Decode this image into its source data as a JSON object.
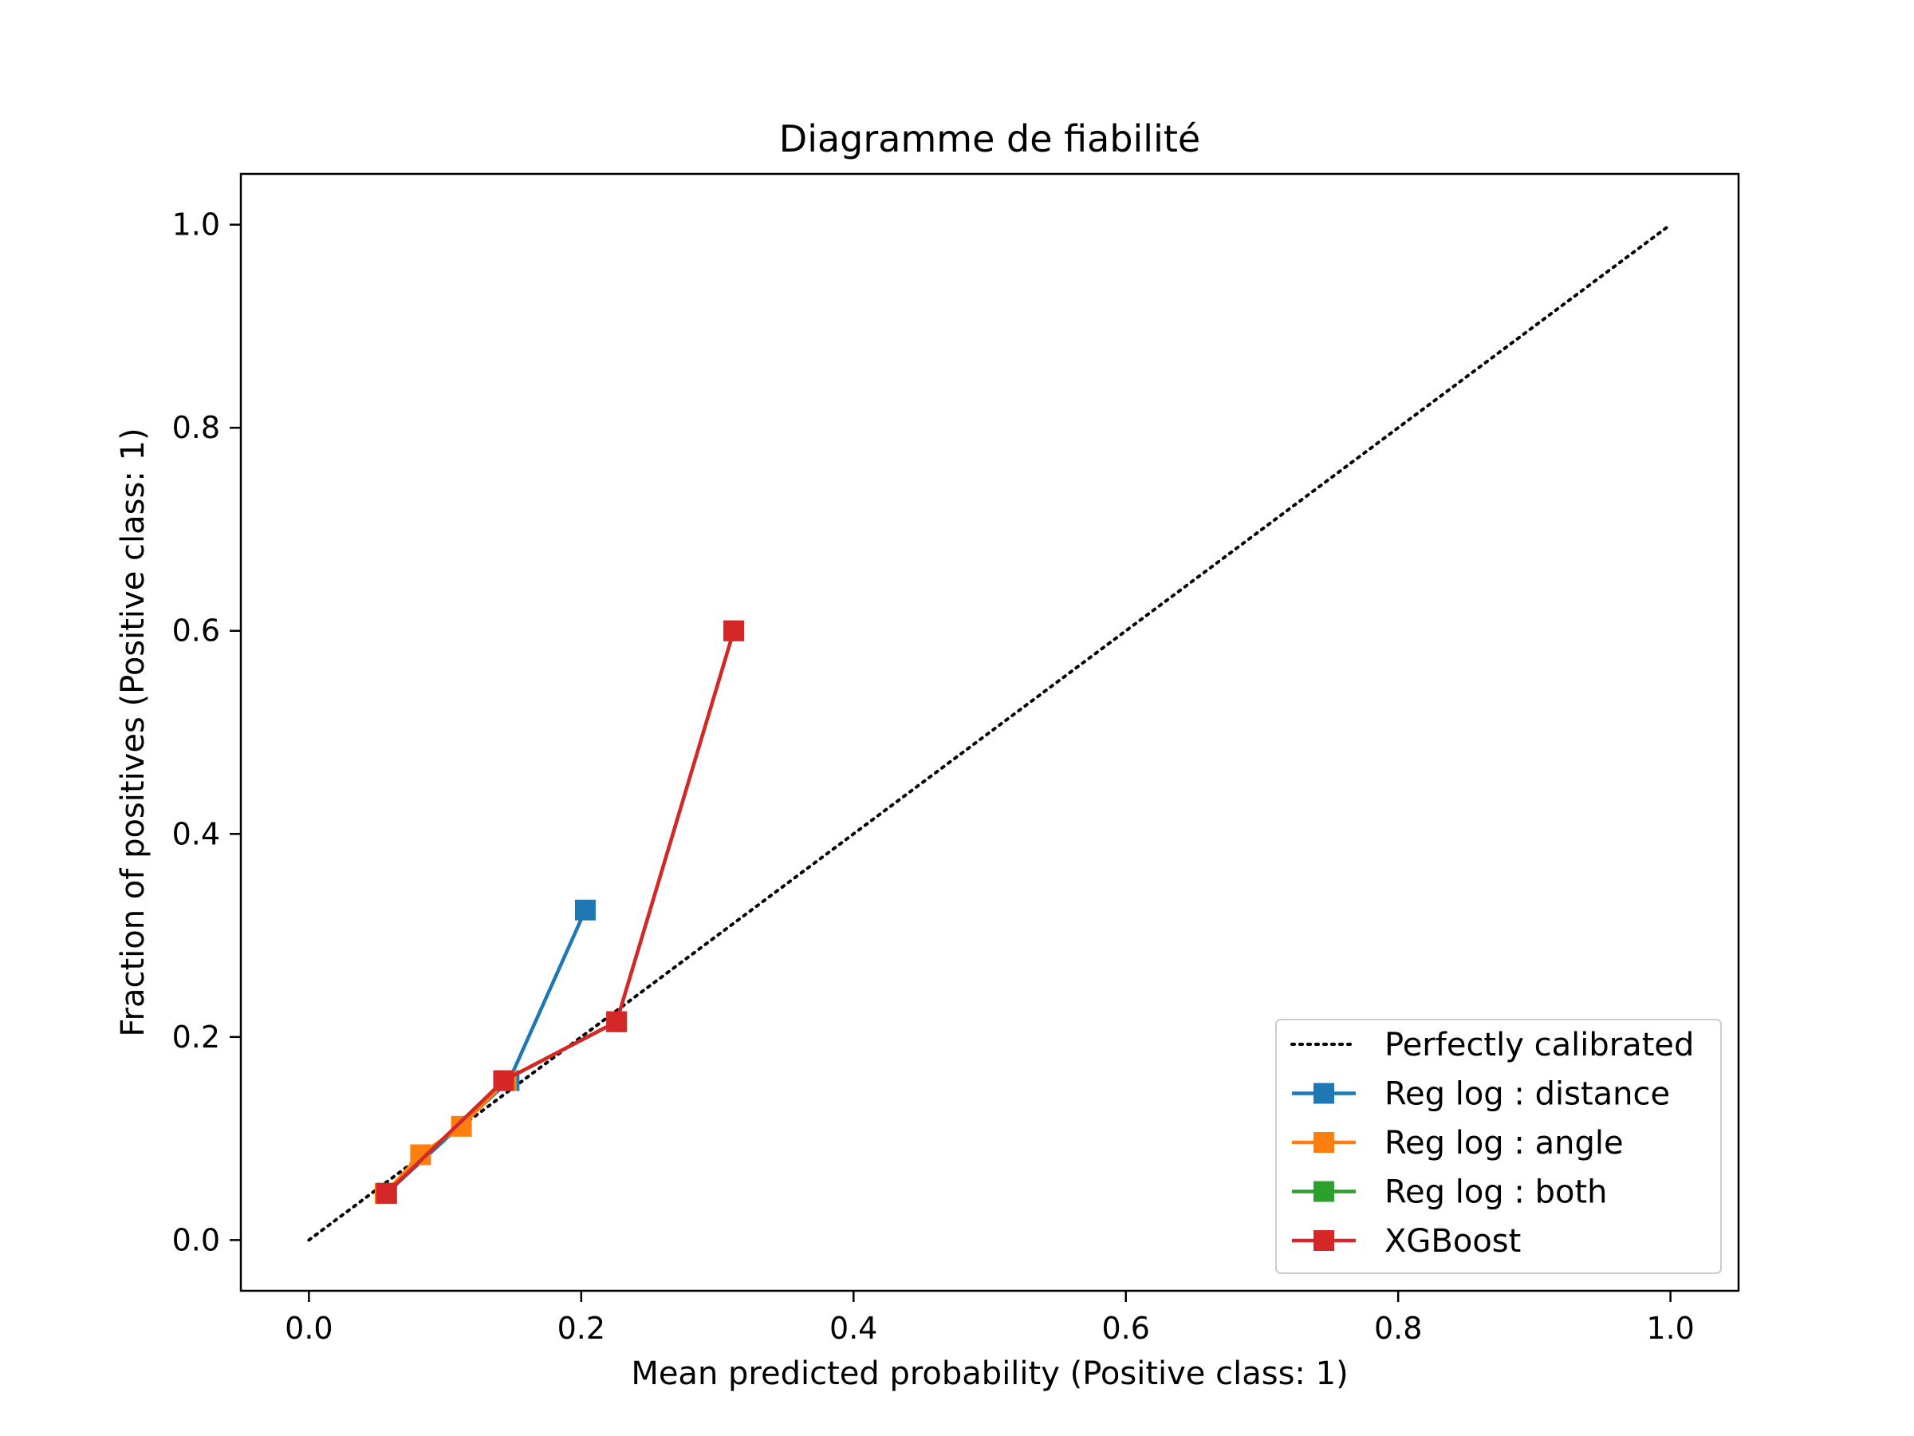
{
  "chart_data": {
    "type": "line",
    "title": "Diagramme de fiabilité",
    "xlabel": "Mean predicted probability (Positive class: 1)",
    "ylabel": "Fraction of positives (Positive class: 1)",
    "xlim": [
      -0.05,
      1.05
    ],
    "ylim": [
      -0.05,
      1.05
    ],
    "xticks": [
      0.0,
      0.2,
      0.4,
      0.6,
      0.8,
      1.0
    ],
    "xtick_labels": [
      "0.0",
      "0.2",
      "0.4",
      "0.6",
      "0.8",
      "1.0"
    ],
    "yticks": [
      0.0,
      0.2,
      0.4,
      0.6,
      0.8,
      1.0
    ],
    "ytick_labels": [
      "0.0",
      "0.2",
      "0.4",
      "0.6",
      "0.8",
      "1.0"
    ],
    "grid": false,
    "legend_position": "bottom-right",
    "reference_line": {
      "name": "Perfectly calibrated",
      "x": [
        0.0,
        1.0
      ],
      "y": [
        0.0,
        1.0
      ],
      "style": "dotted",
      "color": "#000000"
    },
    "series": [
      {
        "name": "Reg log : distance",
        "color": "#1f77b4",
        "marker": "square",
        "x": [
          0.057,
          0.147,
          0.203
        ],
        "y": [
          0.046,
          0.157,
          0.325
        ]
      },
      {
        "name": "Reg log : angle",
        "color": "#ff7f0e",
        "marker": "square",
        "x": [
          0.056,
          0.082,
          0.112,
          0.145
        ],
        "y": [
          0.046,
          0.084,
          0.112,
          0.157
        ]
      },
      {
        "name": "Reg log : both",
        "color": "#2ca02c",
        "marker": "square",
        "x": [
          0.057,
          0.143,
          0.226,
          0.312
        ],
        "y": [
          0.046,
          0.157,
          0.215,
          0.6
        ]
      },
      {
        "name": "XGBoost",
        "color": "#d62728",
        "marker": "square",
        "x": [
          0.057,
          0.143,
          0.226,
          0.312
        ],
        "y": [
          0.046,
          0.157,
          0.215,
          0.6
        ]
      }
    ]
  }
}
